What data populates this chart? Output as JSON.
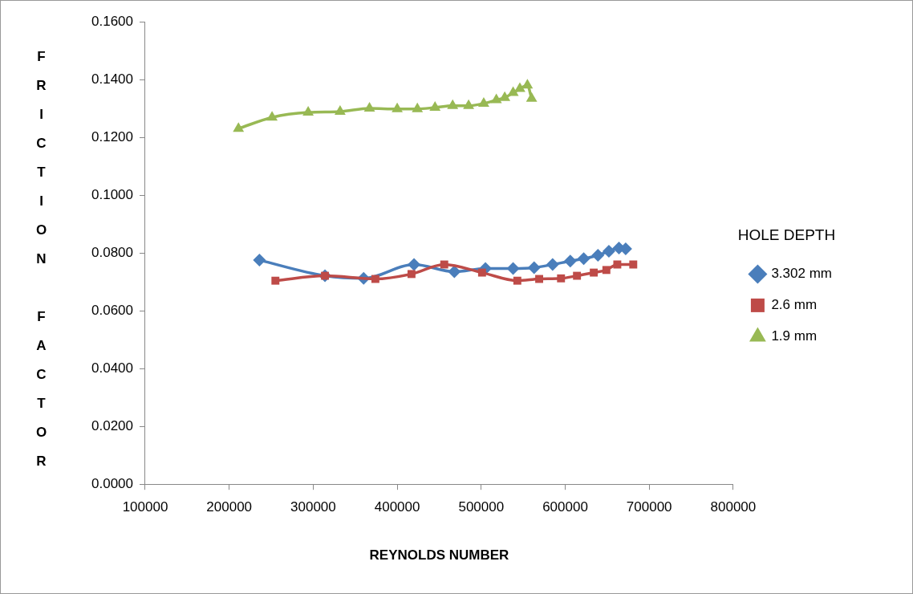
{
  "chart_data": {
    "type": "line",
    "xlabel": "REYNOLDS NUMBER",
    "ylabel": "FRICTION FACTOR",
    "legend_title": "HOLE DEPTH",
    "legend": "right",
    "grid": false,
    "line_style": "solid",
    "xlim": [
      100000,
      800000
    ],
    "xticks": [
      100000,
      200000,
      300000,
      400000,
      500000,
      600000,
      700000,
      800000
    ],
    "ylim": [
      0,
      0.16
    ],
    "yticks": [
      {
        "value": 0,
        "label": "0.0000"
      },
      {
        "value": 0.02,
        "label": "0.0200"
      },
      {
        "value": 0.04,
        "label": "0.0400"
      },
      {
        "value": 0.06,
        "label": "0.0600"
      },
      {
        "value": 0.08,
        "label": "0.0800"
      },
      {
        "value": 0.1,
        "label": "0.1000"
      },
      {
        "value": 0.12,
        "label": "0.1200"
      },
      {
        "value": 0.14,
        "label": "0.1400"
      },
      {
        "value": 0.16,
        "label": "0.1600"
      }
    ],
    "series": [
      {
        "name": "3.302 mm",
        "color": "#4a7ebb",
        "marker": "diamond",
        "x": [
          236000,
          314000,
          360000,
          420000,
          468000,
          505000,
          538000,
          563000,
          585000,
          606000,
          622000,
          639000,
          652000,
          664000,
          672000
        ],
        "values": [
          0.0775,
          0.0721,
          0.0712,
          0.076,
          0.0735,
          0.0746,
          0.0746,
          0.0749,
          0.076,
          0.0772,
          0.078,
          0.0792,
          0.0806,
          0.0817,
          0.0814
        ]
      },
      {
        "name": "2.6 mm",
        "color": "#be4b48",
        "marker": "square",
        "x": [
          255000,
          314000,
          374000,
          417000,
          456000,
          501000,
          543000,
          569000,
          595000,
          614000,
          634000,
          649000,
          662000,
          681000
        ],
        "values": [
          0.0704,
          0.0721,
          0.071,
          0.0727,
          0.076,
          0.0732,
          0.0704,
          0.071,
          0.0712,
          0.0721,
          0.0732,
          0.0741,
          0.076,
          0.076
        ]
      },
      {
        "name": "1.9 mm",
        "color": "#98b954",
        "marker": "triangle",
        "x": [
          211000,
          251000,
          294000,
          332000,
          367000,
          400000,
          424000,
          445000,
          466000,
          485000,
          503000,
          518000,
          528000,
          538000,
          546000,
          555000,
          560000
        ],
        "values": [
          0.123,
          0.1269,
          0.1286,
          0.1289,
          0.13,
          0.1298,
          0.1298,
          0.1303,
          0.1309,
          0.1309,
          0.1317,
          0.1329,
          0.1337,
          0.1354,
          0.1368,
          0.138,
          0.1334
        ]
      }
    ]
  }
}
